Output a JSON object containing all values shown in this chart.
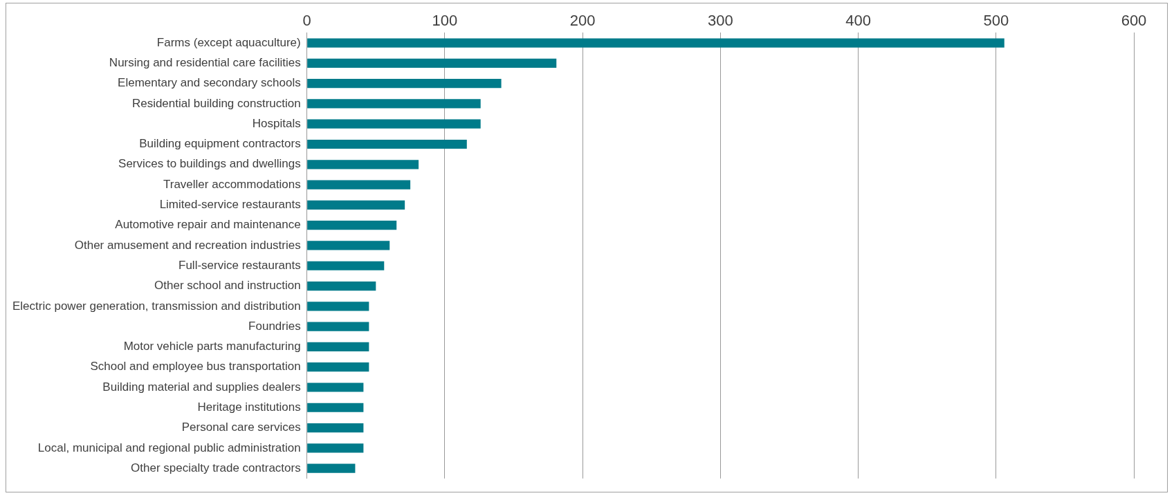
{
  "chart_data": {
    "type": "bar",
    "orientation": "horizontal",
    "categories": [
      "Farms (except aquaculture)",
      "Nursing and residential care facilities",
      "Elementary and secondary schools",
      "Residential building construction",
      "Hospitals",
      "Building equipment contractors",
      "Services to buildings and dwellings",
      "Traveller accommodations",
      "Limited-service restaurants",
      "Automotive repair and maintenance",
      "Other amusement and recreation industries",
      "Full-service restaurants",
      "Other school and instruction",
      "Electric power generation, transmission and distribution",
      "Foundries",
      "Motor vehicle parts manufacturing",
      "School and employee bus transportation",
      "Building material and supplies dealers",
      "Heritage institutions",
      "Personal care services",
      "Local, municipal and regional public administration",
      "Other specialty trade contractors"
    ],
    "values": [
      506,
      181,
      141,
      126,
      126,
      116,
      81,
      75,
      71,
      65,
      60,
      56,
      50,
      45,
      45,
      45,
      45,
      41,
      41,
      41,
      41,
      35
    ],
    "color": "#007b8a",
    "xlim": [
      0,
      600
    ],
    "xticks": [
      0,
      100,
      200,
      300,
      400,
      500,
      600
    ],
    "grid": "x",
    "legend": false
  }
}
